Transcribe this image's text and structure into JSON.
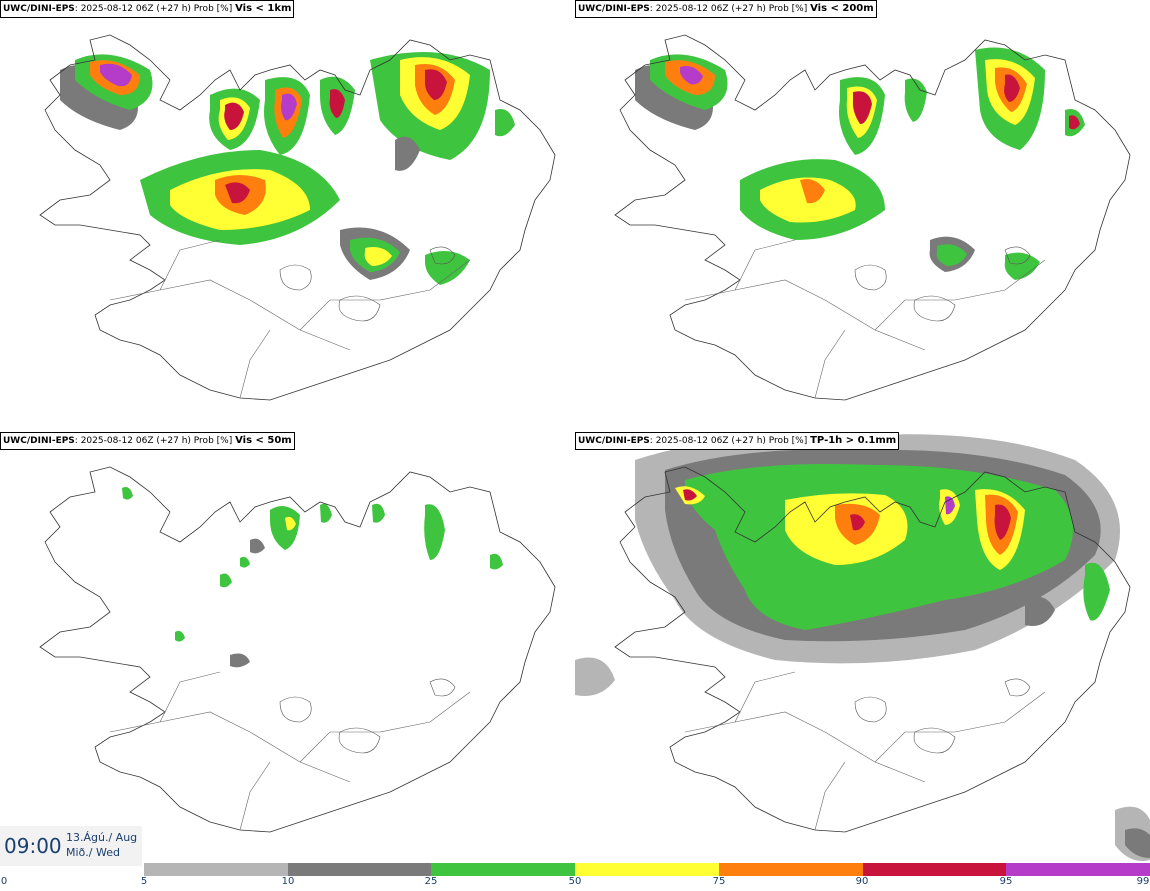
{
  "panels": [
    {
      "model": "UWC/DINI-EPS",
      "run": "2025-08-12 06Z (+27 h) Prob [%]",
      "variable": "Vis < 1km",
      "intensity": "high"
    },
    {
      "model": "UWC/DINI-EPS",
      "run": "2025-08-12 06Z (+27 h) Prob [%]",
      "variable": "Vis < 200m",
      "intensity": "mid"
    },
    {
      "model": "UWC/DINI-EPS",
      "run": "2025-08-12 06Z (+27 h) Prob [%]",
      "variable": "Vis < 50m",
      "intensity": "low"
    },
    {
      "model": "UWC/DINI-EPS",
      "run": "2025-08-12 06Z (+27 h) Prob [%]",
      "variable": "TP-1h > 0.1mm",
      "intensity": "wide"
    }
  ],
  "valid_time": {
    "hour": "09:00",
    "date": "13.Ágú./ Aug",
    "weekday": "Mið./ Wed"
  },
  "colorbar": {
    "ticks": [
      "0",
      "5",
      "10",
      "25",
      "50",
      "75",
      "90",
      "95",
      "99"
    ],
    "colors": [
      "#b5b5b5",
      "#7a7a7a",
      "#3fc43f",
      "#ffff33",
      "#ff7f0e",
      "#c8143c",
      "#b43cc8"
    ]
  }
}
